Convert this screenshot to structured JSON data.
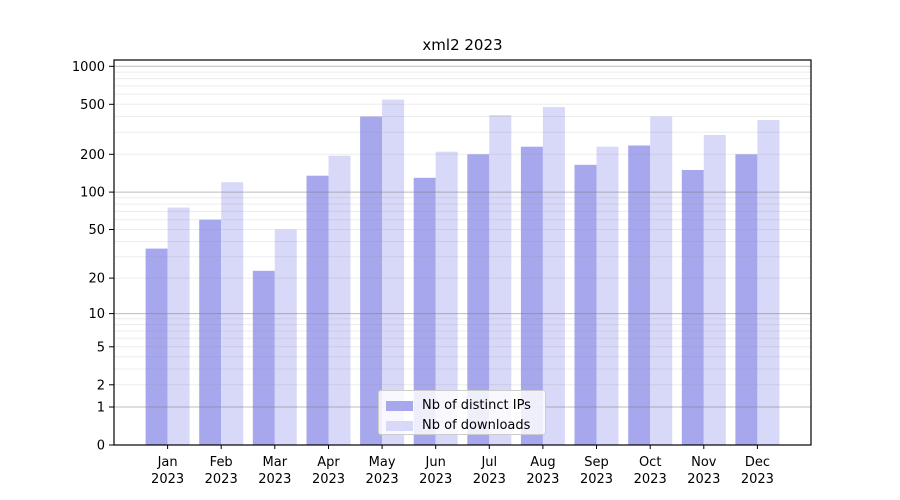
{
  "chart_data": {
    "type": "bar",
    "title": "xml2 2023",
    "categories": [
      "Jan",
      "Feb",
      "Mar",
      "Apr",
      "May",
      "Jun",
      "Jul",
      "Aug",
      "Sep",
      "Oct",
      "Nov",
      "Dec"
    ],
    "x_year": "2023",
    "series": [
      {
        "name": "Nb of distinct IPs",
        "color": "#a7a7ee",
        "values": [
          35,
          60,
          23,
          135,
          400,
          130,
          200,
          230,
          165,
          235,
          150,
          200
        ]
      },
      {
        "name": "Nb of downloads",
        "color": "#d8d8f8",
        "values": [
          75,
          120,
          50,
          195,
          545,
          210,
          410,
          475,
          230,
          400,
          285,
          375
        ]
      }
    ],
    "yscale": "log1p",
    "ylim": [
      0,
      1100
    ],
    "y_ticks": [
      0,
      1,
      2,
      5,
      10,
      20,
      50,
      100,
      200,
      500,
      1000
    ],
    "y_gridlines_decade": [
      1,
      10,
      100,
      1000
    ],
    "y_gridlines_minor": [
      2,
      3,
      4,
      5,
      6,
      7,
      8,
      9,
      20,
      30,
      40,
      50,
      60,
      70,
      80,
      90,
      200,
      300,
      400,
      500,
      600,
      700,
      800,
      900
    ],
    "grid": true,
    "legend_position": "lower center"
  }
}
